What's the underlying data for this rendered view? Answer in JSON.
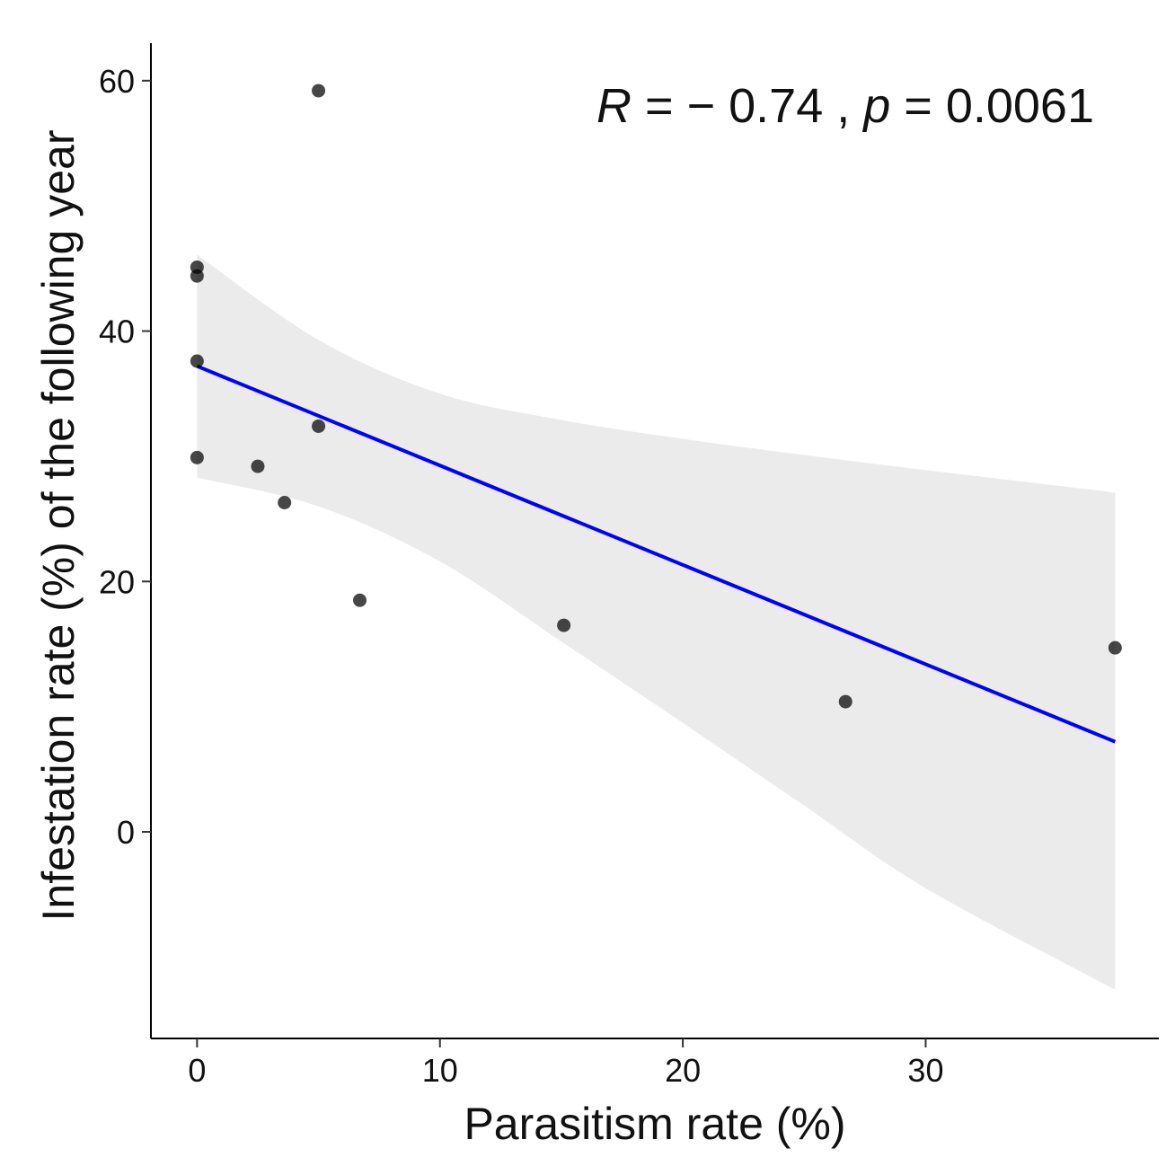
{
  "chart_data": {
    "type": "scatter",
    "title": "",
    "xlabel": "Parasitism rate (%)",
    "ylabel": "Infestation rate (%) of the following year",
    "xlim": [
      -1.9,
      39.6
    ],
    "ylim": [
      -16.5,
      63
    ],
    "x_ticks": [
      0,
      10,
      20,
      30
    ],
    "y_ticks": [
      0,
      20,
      40,
      60
    ],
    "grid": false,
    "points": [
      {
        "x": 0,
        "y": 45.1
      },
      {
        "x": 0,
        "y": 44.4
      },
      {
        "x": 0,
        "y": 37.6
      },
      {
        "x": 0,
        "y": 29.9
      },
      {
        "x": 2.5,
        "y": 29.2
      },
      {
        "x": 3.6,
        "y": 26.3
      },
      {
        "x": 5.0,
        "y": 59.2
      },
      {
        "x": 5.0,
        "y": 32.4
      },
      {
        "x": 6.7,
        "y": 18.5
      },
      {
        "x": 15.1,
        "y": 16.5
      },
      {
        "x": 26.7,
        "y": 10.4
      },
      {
        "x": 37.8,
        "y": 14.7
      }
    ],
    "regression": {
      "color": "#0000ff",
      "x": [
        0,
        37.8
      ],
      "y": [
        37.2,
        7.2
      ]
    },
    "confidence_band": {
      "fill": "#ebebeb",
      "x": [
        0,
        5,
        10,
        15,
        20,
        25,
        30,
        37.8
      ],
      "upper": [
        46.1,
        39.3,
        35.0,
        32.9,
        31.4,
        30.1,
        28.9,
        27.1
      ],
      "lower": [
        28.3,
        26.0,
        21.6,
        15.2,
        8.7,
        2.1,
        -4.5,
        -12.6
      ]
    },
    "annotation": {
      "r_symbol": "R",
      "r_text": " = − 0.74 , ",
      "p_symbol": "p",
      "p_text": " = 0.0061"
    }
  }
}
